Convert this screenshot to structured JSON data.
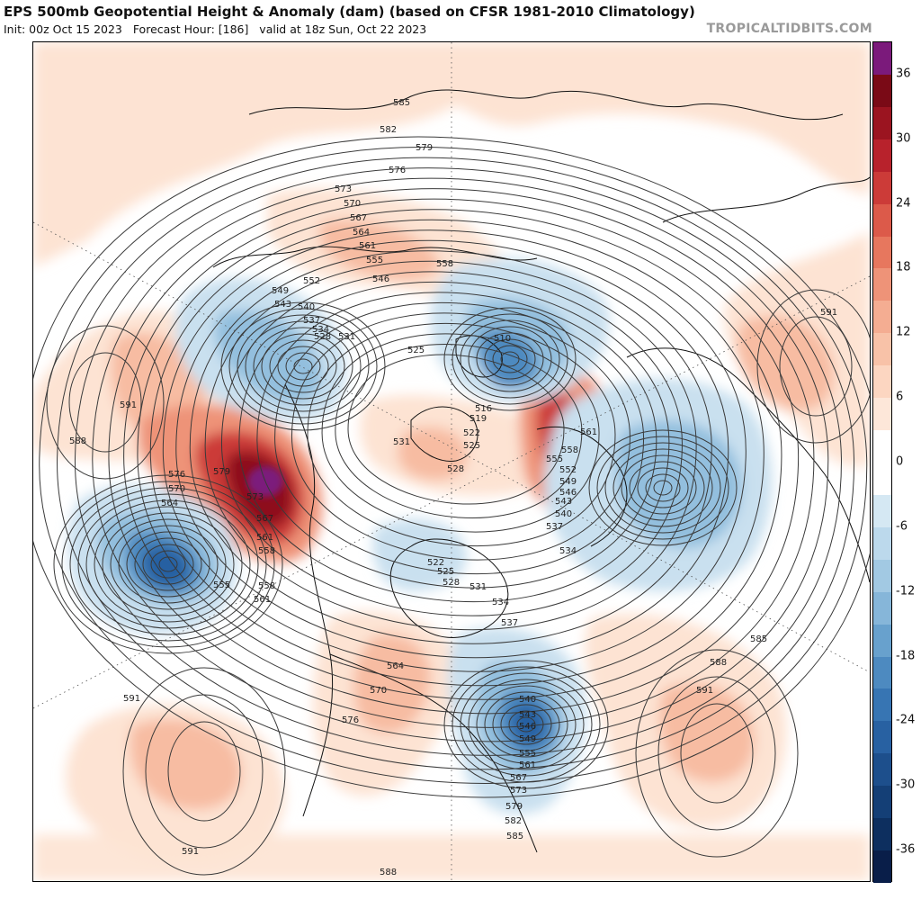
{
  "header": {
    "title": "EPS 500mb Geopotential Height & Anomaly (dam) (based on CFSR 1981-2010 Climatology)",
    "init": "Init: 00z Oct 15 2023",
    "forecast_hour": "Forecast Hour: [186]",
    "valid": "valid at 18z Sun, Oct 22 2023",
    "brand": "TROPICALTIDBITS.COM"
  },
  "colorbar": {
    "range": [
      -39,
      39
    ],
    "bands": [
      {
        "from": 36,
        "to": 39,
        "color": "#7b1a7b"
      },
      {
        "from": 33,
        "to": 36,
        "color": "#7a0a16"
      },
      {
        "from": 30,
        "to": 33,
        "color": "#9b1420"
      },
      {
        "from": 27,
        "to": 30,
        "color": "#b8222c"
      },
      {
        "from": 24,
        "to": 27,
        "color": "#cc3b38"
      },
      {
        "from": 21,
        "to": 24,
        "color": "#dc5a4a"
      },
      {
        "from": 18,
        "to": 21,
        "color": "#e7775e"
      },
      {
        "from": 15,
        "to": 18,
        "color": "#ee9378"
      },
      {
        "from": 12,
        "to": 15,
        "color": "#f4ad92"
      },
      {
        "from": 9,
        "to": 12,
        "color": "#f8c2a8"
      },
      {
        "from": 6,
        "to": 9,
        "color": "#fcd6c1"
      },
      {
        "from": 3,
        "to": 6,
        "color": "#fde7d9"
      },
      {
        "from": -3,
        "to": 3,
        "color": "#ffffff"
      },
      {
        "from": -6,
        "to": -3,
        "color": "#d5e8f3"
      },
      {
        "from": -9,
        "to": -6,
        "color": "#bcd9ec"
      },
      {
        "from": -12,
        "to": -9,
        "color": "#a2c9e3"
      },
      {
        "from": -15,
        "to": -12,
        "color": "#86b6d9"
      },
      {
        "from": -18,
        "to": -15,
        "color": "#68a1cd"
      },
      {
        "from": -21,
        "to": -18,
        "color": "#4d8ac0"
      },
      {
        "from": -24,
        "to": -21,
        "color": "#3775b3"
      },
      {
        "from": -27,
        "to": -24,
        "color": "#2861a2"
      },
      {
        "from": -30,
        "to": -27,
        "color": "#1d4f8c"
      },
      {
        "from": -33,
        "to": -30,
        "color": "#143f76"
      },
      {
        "from": -36,
        "to": -33,
        "color": "#0d2f5f"
      },
      {
        "from": -39,
        "to": -36,
        "color": "#091e49"
      }
    ],
    "ticks": [
      36,
      30,
      24,
      18,
      12,
      6,
      0,
      -6,
      -12,
      -18,
      -24,
      -30,
      -36
    ]
  },
  "anomaly_colors": {
    "pos_light": "#fde3d3",
    "pos_mid": "#f7bca2",
    "pos_strong": "#ee9378",
    "pos_red": "#cc3b38",
    "pos_dark": "#8e0f1c",
    "pos_max": "#7b1a7b",
    "neg_light": "#c9e0ef",
    "neg_mid": "#93bfde",
    "neg_strong": "#4d8ac0",
    "neg_dark": "#2861a2"
  },
  "contour_labels": [
    {
      "text": "585"
    },
    {
      "text": "582"
    },
    {
      "text": "579"
    },
    {
      "text": "576"
    },
    {
      "text": "573"
    },
    {
      "text": "570"
    },
    {
      "text": "567"
    },
    {
      "text": "564"
    },
    {
      "text": "561"
    },
    {
      "text": "555"
    },
    {
      "text": "558"
    },
    {
      "text": "552"
    },
    {
      "text": "546"
    },
    {
      "text": "549"
    },
    {
      "text": "543"
    },
    {
      "text": "540"
    },
    {
      "text": "537"
    },
    {
      "text": "534"
    },
    {
      "text": "531"
    },
    {
      "text": "528"
    },
    {
      "text": "525"
    },
    {
      "text": "510"
    },
    {
      "text": "516"
    },
    {
      "text": "519"
    },
    {
      "text": "522"
    },
    {
      "text": "525"
    },
    {
      "text": "531"
    },
    {
      "text": "528"
    },
    {
      "text": "591"
    },
    {
      "text": "588"
    },
    {
      "text": "576"
    },
    {
      "text": "579"
    },
    {
      "text": "570"
    },
    {
      "text": "564"
    },
    {
      "text": "573"
    },
    {
      "text": "567"
    },
    {
      "text": "561"
    },
    {
      "text": "558"
    },
    {
      "text": "555"
    },
    {
      "text": "558"
    },
    {
      "text": "561"
    },
    {
      "text": "522"
    },
    {
      "text": "525"
    },
    {
      "text": "528"
    },
    {
      "text": "531"
    },
    {
      "text": "534"
    },
    {
      "text": "537"
    },
    {
      "text": "534"
    },
    {
      "text": "537"
    },
    {
      "text": "540"
    },
    {
      "text": "543"
    },
    {
      "text": "546"
    },
    {
      "text": "549"
    },
    {
      "text": "552"
    },
    {
      "text": "555"
    },
    {
      "text": "558"
    },
    {
      "text": "561"
    },
    {
      "text": "591"
    },
    {
      "text": "585"
    },
    {
      "text": "588"
    },
    {
      "text": "591"
    },
    {
      "text": "564"
    },
    {
      "text": "570"
    },
    {
      "text": "576"
    },
    {
      "text": "540"
    },
    {
      "text": "543"
    },
    {
      "text": "546"
    },
    {
      "text": "549"
    },
    {
      "text": "555"
    },
    {
      "text": "561"
    },
    {
      "text": "567"
    },
    {
      "text": "573"
    },
    {
      "text": "579"
    },
    {
      "text": "582"
    },
    {
      "text": "585"
    },
    {
      "text": "591"
    },
    {
      "text": "591"
    },
    {
      "text": "588"
    }
  ]
}
